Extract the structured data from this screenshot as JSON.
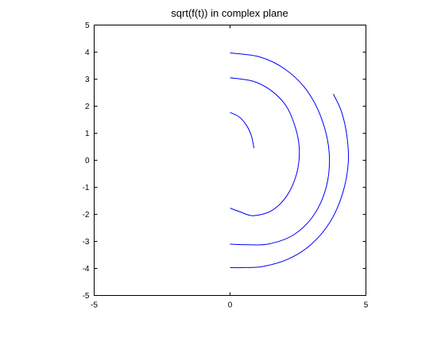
{
  "chart_data": {
    "type": "line",
    "title": "sqrt(f(t)) in complex plane",
    "xlabel": "",
    "ylabel": "",
    "xlim": [
      -5,
      5
    ],
    "ylim": [
      -5,
      5
    ],
    "xticks": [
      -5,
      0,
      5
    ],
    "yticks": [
      -5,
      -4,
      -3,
      -2,
      -1,
      0,
      1,
      2,
      3,
      4,
      5
    ],
    "grid": false,
    "line_color": "#0000ff",
    "series": [
      {
        "x": [
          0.0,
          0.34,
          0.6,
          0.78,
          0.88
        ],
        "y": [
          1.77,
          1.6,
          1.3,
          0.92,
          0.45
        ]
      },
      {
        "x": [
          0.0,
          0.86,
          1.55,
          2.1,
          2.45,
          2.55,
          2.45,
          2.1,
          1.55,
          0.86,
          0.35,
          0.0
        ],
        "y": [
          3.05,
          2.92,
          2.55,
          1.95,
          1.05,
          0.3,
          -0.5,
          -1.3,
          -1.85,
          -2.05,
          -1.9,
          -1.77
        ]
      },
      {
        "x": [
          0.0,
          1.1,
          2.05,
          2.85,
          3.4,
          3.65,
          3.55,
          3.1,
          2.35,
          1.4,
          0.5,
          0.0
        ],
        "y": [
          3.97,
          3.82,
          3.35,
          2.55,
          1.45,
          0.25,
          -0.95,
          -2.0,
          -2.75,
          -3.1,
          -3.12,
          -3.1
        ]
      },
      {
        "x": [
          3.8,
          4.1,
          4.3,
          4.35,
          4.15,
          3.7,
          3.0,
          2.15,
          1.2,
          0.4,
          0.0
        ],
        "y": [
          2.45,
          1.8,
          0.9,
          -0.1,
          -1.2,
          -2.25,
          -3.1,
          -3.65,
          -3.93,
          -3.97,
          -3.97
        ]
      }
    ]
  }
}
